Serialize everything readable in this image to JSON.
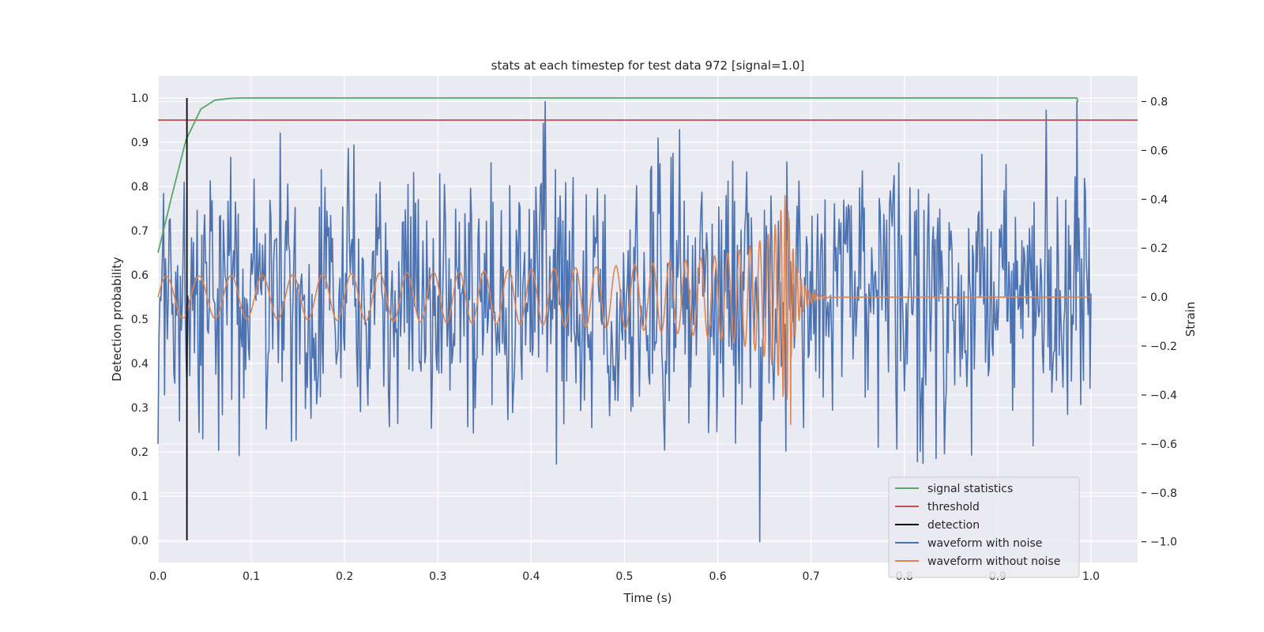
{
  "chart_data": {
    "type": "line",
    "title": "stats at each timestep for test data 972 [signal=1.0]",
    "xlabel": "Time (s)",
    "ylabel_left": "Detection probability",
    "ylabel_right": "Strain",
    "xlim": [
      0.0,
      1.05
    ],
    "ylim_left": [
      -0.05,
      1.05
    ],
    "ylim_right": [
      -1.085,
      0.905
    ],
    "x_ticks": [
      "0.0",
      "0.1",
      "0.2",
      "0.3",
      "0.4",
      "0.5",
      "0.6",
      "0.7",
      "0.8",
      "0.9",
      "1.0"
    ],
    "x_tick_values": [
      0.0,
      0.1,
      0.2,
      0.3,
      0.4,
      0.5,
      0.6,
      0.7,
      0.8,
      0.9,
      1.0
    ],
    "y_left_ticks": [
      "0.0",
      "0.1",
      "0.2",
      "0.3",
      "0.4",
      "0.5",
      "0.6",
      "0.7",
      "0.8",
      "0.9",
      "1.0"
    ],
    "y_left_tick_values": [
      0.0,
      0.1,
      0.2,
      0.3,
      0.4,
      0.5,
      0.6,
      0.7,
      0.8,
      0.9,
      1.0
    ],
    "y_right_ticks": [
      "−1.0",
      "−0.8",
      "−0.6",
      "−0.4",
      "−0.2",
      "0.0",
      "0.2",
      "0.4",
      "0.6",
      "0.8"
    ],
    "y_right_tick_values": [
      -1.0,
      -0.8,
      -0.6,
      -0.4,
      -0.2,
      0.0,
      0.2,
      0.4,
      0.6,
      0.8
    ],
    "series": [
      {
        "name": "signal statistics",
        "axis": "left",
        "color": "#55a868",
        "x": [
          0.0,
          0.015,
          0.03,
          0.046,
          0.061,
          0.076,
          0.09,
          0.985,
          0.986
        ],
        "y": [
          0.65,
          0.78,
          0.905,
          0.975,
          0.995,
          0.999,
          1.0,
          1.0,
          0.99
        ]
      },
      {
        "name": "threshold",
        "axis": "left",
        "color": "#c44e52",
        "x": [
          0.0,
          1.05
        ],
        "y": [
          0.95,
          0.95
        ]
      },
      {
        "name": "detection",
        "axis": "left",
        "color": "#000000",
        "x": [
          0.031,
          0.031
        ],
        "y": [
          0.0,
          1.0
        ]
      },
      {
        "name": "waveform with noise",
        "axis": "right",
        "color": "#4c72b0",
        "description": "dense noisy strain trace, roughly within [-1.0, 0.8], peaks near 0.8 at t≈0.415 and 0.985, minimum ≈ -1.0 at t≈0.645",
        "noise_range": [
          -1.0,
          0.8
        ],
        "x_range": [
          0.0,
          1.0
        ]
      },
      {
        "name": "waveform without noise",
        "axis": "right",
        "color": "#dd8452",
        "description": "chirp: amplitude ~0.08 growing to ~0.35 near merger at t≈0.675, then ringdown to 0.0 by t≈0.72",
        "merger_time": 0.675,
        "merger_peak": 0.35,
        "merger_trough": -0.52,
        "x_range": [
          0.0,
          1.0
        ]
      }
    ],
    "legend": {
      "position": "lower-right",
      "entries": [
        {
          "label": "signal statistics",
          "color": "#55a868"
        },
        {
          "label": "threshold",
          "color": "#c44e52"
        },
        {
          "label": "detection",
          "color": "#000000"
        },
        {
          "label": "waveform with noise",
          "color": "#4c72b0"
        },
        {
          "label": "waveform without noise",
          "color": "#dd8452"
        }
      ]
    },
    "style": {
      "background": "#eaeaf2",
      "grid": true,
      "grid_color": "#ffffff"
    }
  }
}
